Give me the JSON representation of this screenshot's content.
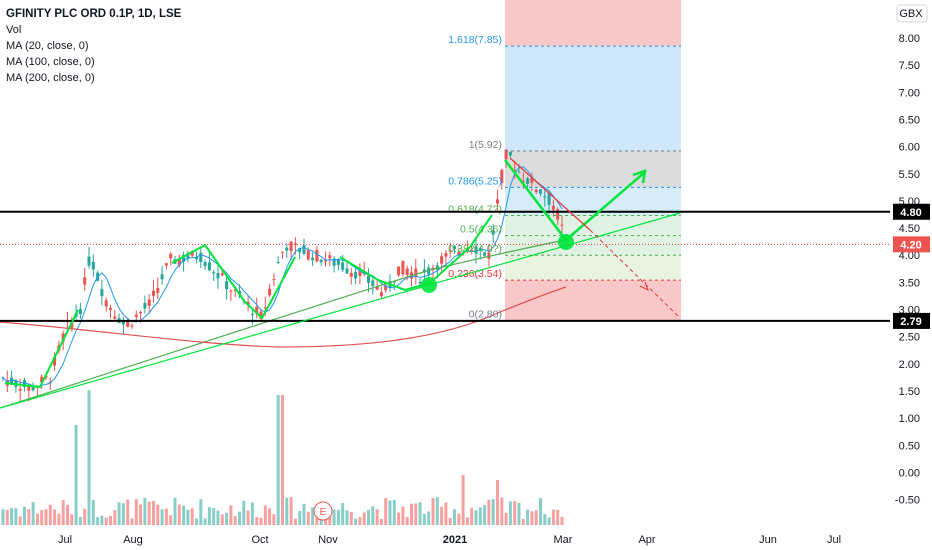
{
  "legend": {
    "title": "GFINITY PLC ORD 0.1P, 1D, LSE",
    "vol": "Vol",
    "ma20": "MA (20, close, 0)",
    "ma100": "MA (100, close, 0)",
    "ma200": "MA (200, close, 0)"
  },
  "currency": "GBX",
  "colors": {
    "up": "#26a69a",
    "down": "#ef5350",
    "ma20": "#2196f3",
    "ma100": "#4caf50",
    "ma200": "#e05050",
    "drawing": "#00e53a",
    "redline": "#e53935"
  },
  "chart_data": {
    "type": "candlestick",
    "ylim": [
      -0.75,
      8.6
    ],
    "yticks": [
      "8.00",
      "7.50",
      "7.00",
      "6.50",
      "6.00",
      "5.50",
      "5.00",
      "4.50",
      "4.00",
      "3.50",
      "3.00",
      "2.50",
      "2.00",
      "1.50",
      "1.00",
      "0.50",
      "0.00",
      "-0.50"
    ],
    "xticks": [
      "Jul",
      "Aug",
      "Oct",
      "Nov",
      "2021",
      "Mar",
      "Apr",
      "Jun",
      "Jul"
    ],
    "bold_xtick": "2021",
    "price_labels": [
      {
        "text": "4.80",
        "value": 4.8,
        "style": "black"
      },
      {
        "text": "4.20",
        "value": 4.2,
        "style": "red"
      },
      {
        "text": "2.79",
        "value": 2.79,
        "style": "black"
      }
    ],
    "horizontal_lines": [
      4.8,
      2.79
    ],
    "current_price": 4.2,
    "fib_levels": [
      {
        "label": "1.618(7.85)",
        "value": 7.85,
        "color": "#2196f3"
      },
      {
        "label": "1(5.92)",
        "value": 5.92,
        "color": "#787b86"
      },
      {
        "label": "0.786(5.25)",
        "value": 5.25,
        "color": "#2196f3"
      },
      {
        "label": "0.618(4.7?)",
        "value": 4.73,
        "color": "#4caf50"
      },
      {
        "label": "0.5(4.36)",
        "value": 4.36,
        "color": "#4caf50"
      },
      {
        "label": "0.382(4.0?)",
        "value": 4.0,
        "color": "#4caf50"
      },
      {
        "label": "0.236(3.54)",
        "value": 3.54,
        "color": "#e53935"
      },
      {
        "label": "0(2.80)",
        "value": 2.8,
        "color": "#787b86"
      }
    ],
    "fib_zones": [
      {
        "from": 8.6,
        "to": 7.85,
        "color": "#f8c8c8"
      },
      {
        "from": 7.85,
        "to": 5.92,
        "color": "#cfe6fb"
      },
      {
        "from": 5.92,
        "to": 5.25,
        "color": "#dcdcdc"
      },
      {
        "from": 5.25,
        "to": 4.73,
        "color": "#d6ecf9"
      },
      {
        "from": 4.73,
        "to": 4.0,
        "color": "#dff2e4"
      },
      {
        "from": 4.0,
        "to": 3.54,
        "color": "#e9f4e0"
      },
      {
        "from": 3.54,
        "to": 2.8,
        "color": "#f8c8c8"
      }
    ],
    "annotation_marker": "E"
  }
}
